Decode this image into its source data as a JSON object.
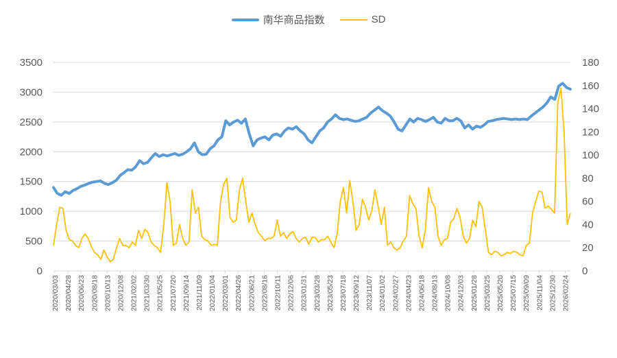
{
  "chart_data": {
    "type": "line",
    "title": "",
    "legend": [
      {
        "name": "南华商品指数",
        "color": "#5B9BD5",
        "axis": "left"
      },
      {
        "name": "SD",
        "color": "#FFC000",
        "axis": "right"
      }
    ],
    "legend_position": "top",
    "grid": true,
    "left_axis": {
      "ticks": [
        0,
        500,
        1000,
        1500,
        2000,
        2500,
        3000,
        3500
      ],
      "ylim": [
        0,
        3500
      ]
    },
    "right_axis": {
      "ticks": [
        0,
        20,
        40,
        60,
        80,
        100,
        120,
        140,
        160,
        180
      ],
      "ylim": [
        0,
        180
      ]
    },
    "x_tick_labels": [
      "2020/03/03",
      "2020/04/28",
      "2020/06/23",
      "2020/08/18",
      "2020/10/13",
      "2020/12/08",
      "2021/02/02",
      "2021/03/30",
      "2021/05/25",
      "2021/07/20",
      "2021/09/14",
      "2021/11/09",
      "2022/01/04",
      "2022/03/01",
      "2022/04/26",
      "2022/06/21",
      "2022/08/16",
      "2022/10/11",
      "2022/12/06",
      "2023/01/31",
      "2023/03/28",
      "2023/05/23",
      "2023/07/18",
      "2023/09/12",
      "2023/11/07",
      "2024/01/02",
      "2024/02/27",
      "2024/04/23",
      "2024/06/18",
      "2024/08/13",
      "2024/10/08",
      "2024/12/03",
      "2025/01/28",
      "2025/03/25",
      "2025/05/20",
      "2025/07/15",
      "2025/09/09",
      "2025/11/04",
      "2025/12/30",
      "2026/02/24"
    ],
    "series": [
      {
        "name": "南华商品指数",
        "axis": "left",
        "values": [
          1400,
          1300,
          1270,
          1330,
          1300,
          1350,
          1380,
          1420,
          1440,
          1470,
          1490,
          1500,
          1510,
          1470,
          1450,
          1480,
          1520,
          1600,
          1650,
          1700,
          1690,
          1750,
          1850,
          1800,
          1820,
          1900,
          1970,
          1920,
          1950,
          1930,
          1950,
          1970,
          1940,
          1960,
          2000,
          2050,
          2150,
          2000,
          1950,
          1960,
          2050,
          2100,
          2200,
          2250,
          2520,
          2450,
          2500,
          2530,
          2480,
          2550,
          2300,
          2100,
          2200,
          2230,
          2250,
          2200,
          2280,
          2300,
          2260,
          2350,
          2400,
          2380,
          2420,
          2350,
          2300,
          2200,
          2150,
          2250,
          2350,
          2400,
          2500,
          2550,
          2620,
          2560,
          2540,
          2550,
          2530,
          2510,
          2520,
          2550,
          2580,
          2650,
          2700,
          2750,
          2690,
          2650,
          2600,
          2500,
          2380,
          2350,
          2450,
          2550,
          2500,
          2560,
          2540,
          2510,
          2540,
          2580,
          2500,
          2480,
          2560,
          2520,
          2520,
          2560,
          2520,
          2400,
          2450,
          2380,
          2430,
          2410,
          2450,
          2510,
          2520,
          2540,
          2550,
          2560,
          2550,
          2540,
          2550,
          2540,
          2550,
          2540,
          2600,
          2650,
          2700,
          2750,
          2820,
          2920,
          2880,
          3100,
          3150,
          3080,
          3050
        ]
      },
      {
        "name": "SD",
        "axis": "right",
        "values": [
          22,
          40,
          55,
          54,
          35,
          27,
          26,
          22,
          20,
          28,
          32,
          28,
          21,
          16,
          14,
          10,
          18,
          12,
          8,
          10,
          20,
          28,
          22,
          22,
          20,
          25,
          22,
          35,
          28,
          36,
          33,
          25,
          22,
          20,
          16,
          40,
          76,
          60,
          22,
          24,
          40,
          28,
          22,
          25,
          70,
          50,
          55,
          30,
          27,
          26,
          22,
          23,
          22,
          60,
          75,
          80,
          46,
          42,
          44,
          70,
          80,
          60,
          42,
          50,
          40,
          33,
          30,
          26,
          28,
          28,
          30,
          44,
          30,
          33,
          28,
          32,
          34,
          28,
          25,
          28,
          29,
          23,
          29,
          29,
          25,
          27,
          27,
          30,
          25,
          20,
          32,
          60,
          72,
          50,
          78,
          60,
          35,
          40,
          62,
          55,
          44,
          52,
          70,
          56,
          40,
          55,
          22,
          25,
          20,
          18,
          20,
          26,
          30,
          65,
          58,
          54,
          30,
          20,
          36,
          72,
          60,
          55,
          30,
          22,
          27,
          28,
          42,
          45,
          54,
          46,
          30,
          24,
          28,
          44,
          38,
          60,
          55,
          36,
          16,
          14,
          17,
          16,
          13,
          14,
          16,
          15,
          17,
          16,
          14,
          13,
          22,
          24,
          50,
          60,
          69,
          68,
          54,
          56,
          53,
          50,
          145,
          158,
          120,
          40,
          50
        ]
      }
    ],
    "xlabel": "",
    "ylabel_left": "",
    "ylabel_right": ""
  }
}
